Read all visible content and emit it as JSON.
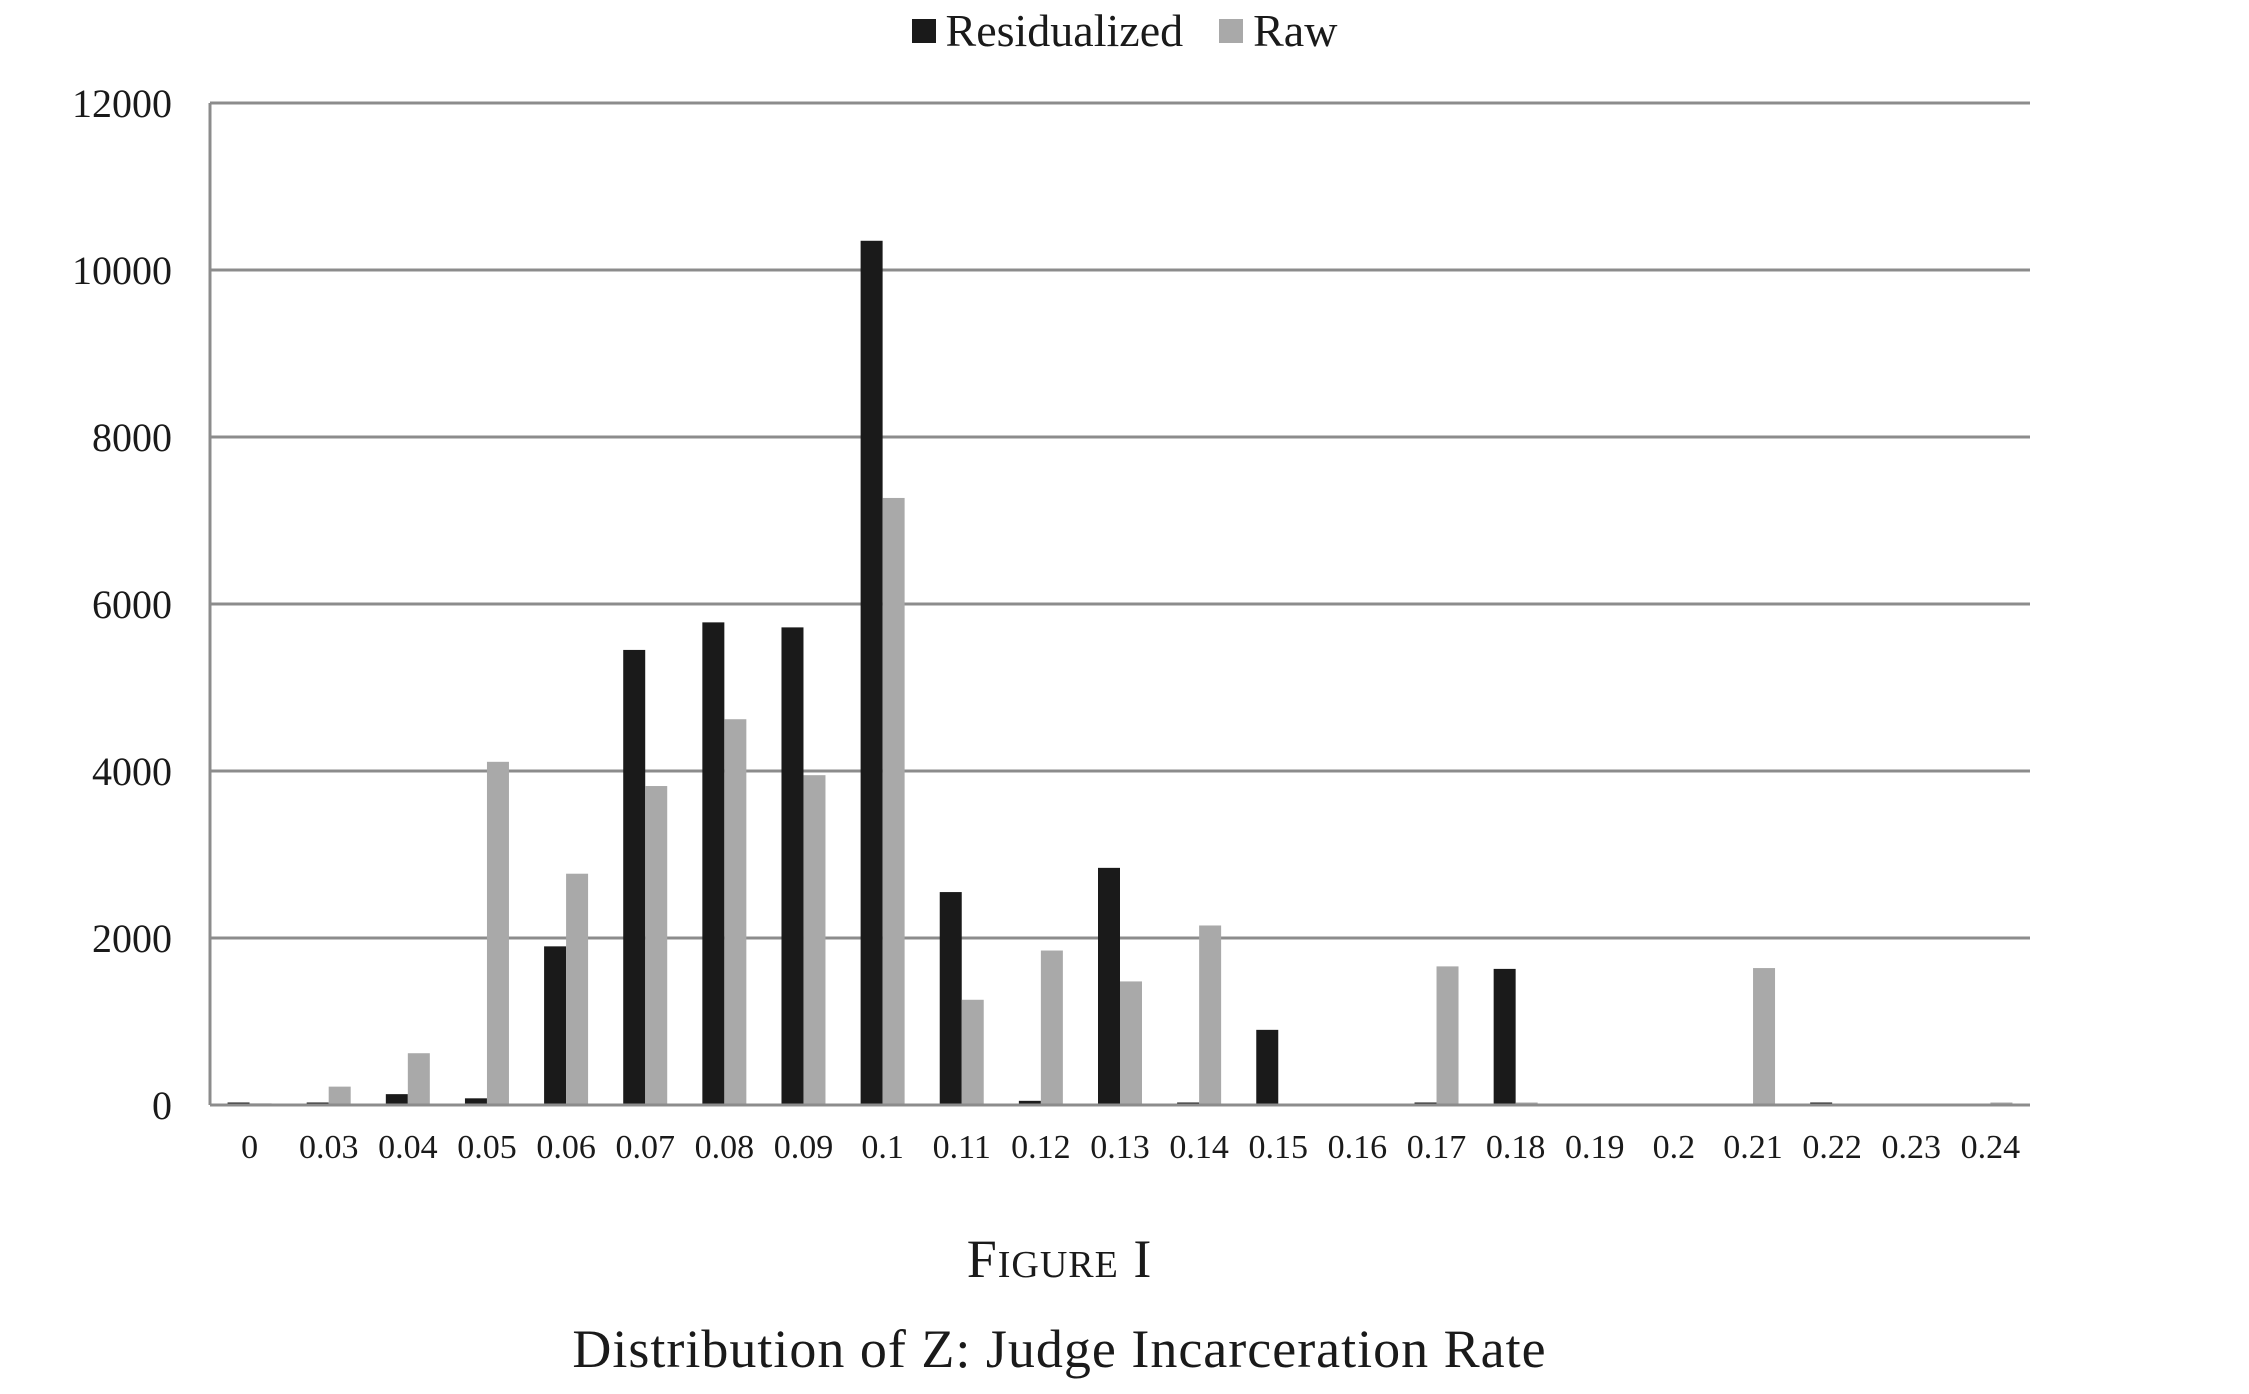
{
  "chart_data": {
    "type": "bar",
    "categories": [
      "0",
      "0.03",
      "0.04",
      "0.05",
      "0.06",
      "0.07",
      "0.08",
      "0.09",
      "0.1",
      "0.11",
      "0.12",
      "0.13",
      "0.14",
      "0.15",
      "0.16",
      "0.17",
      "0.18",
      "0.19",
      "0.2",
      "0.21",
      "0.22",
      "0.23",
      "0.24"
    ],
    "series": [
      {
        "name": "Residualized",
        "color": "#1a1a1a",
        "values": [
          30,
          30,
          130,
          80,
          1900,
          5450,
          5780,
          5720,
          10350,
          2550,
          50,
          2840,
          30,
          900,
          0,
          30,
          1630,
          0,
          0,
          0,
          30,
          0,
          0
        ]
      },
      {
        "name": "Raw",
        "color": "#a9a9a9",
        "values": [
          20,
          220,
          620,
          4110,
          2770,
          3820,
          4620,
          3950,
          7270,
          1260,
          1850,
          1480,
          2150,
          0,
          0,
          1660,
          30,
          0,
          0,
          1640,
          0,
          0,
          30
        ]
      }
    ],
    "ylim": [
      0,
      12000
    ],
    "yticks": [
      "0",
      "2000",
      "4000",
      "6000",
      "8000",
      "10000",
      "12000"
    ],
    "grid": true,
    "legend_position": "top-center"
  },
  "caption": {
    "figure_label": "Figure I",
    "title": "Distribution of Z: Judge Incarceration Rate"
  }
}
